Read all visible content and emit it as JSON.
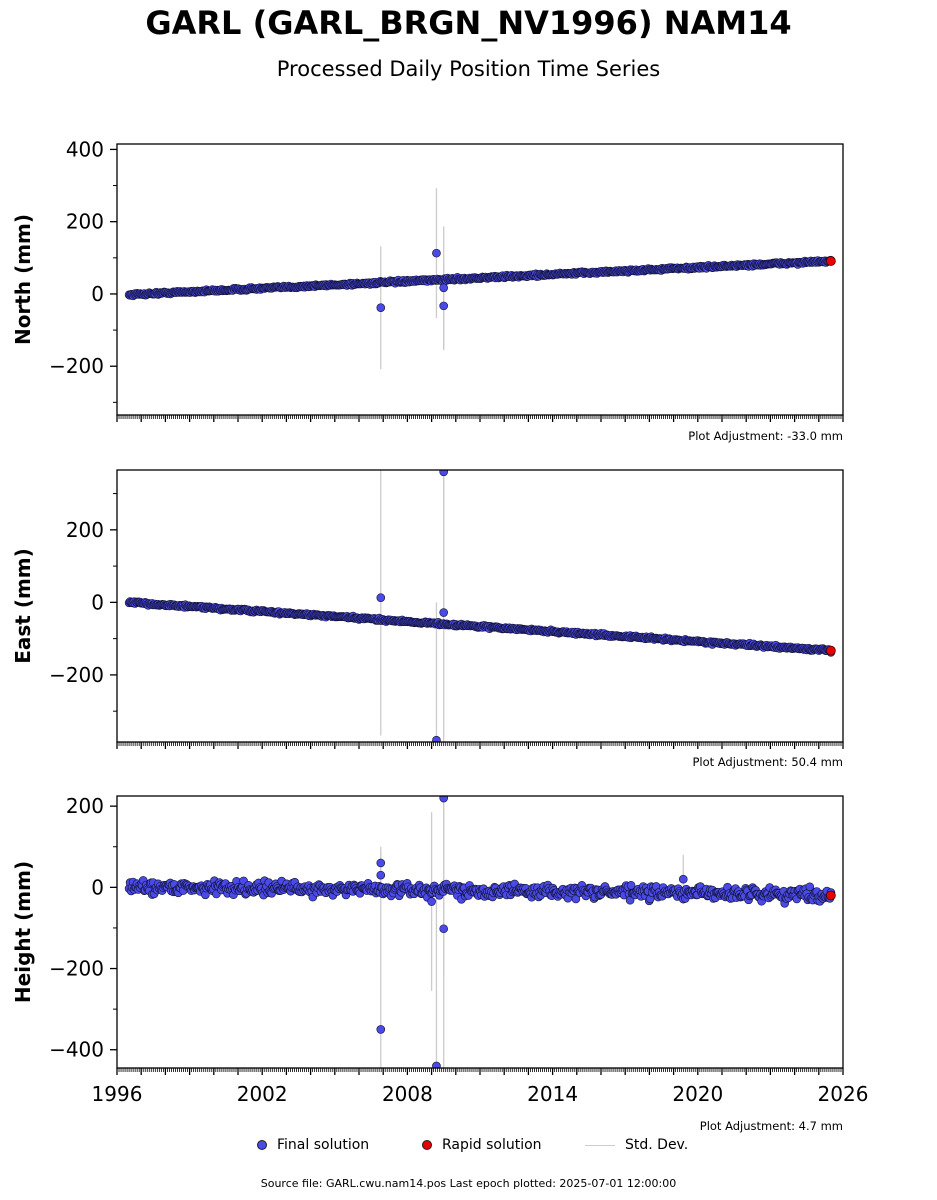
{
  "title": "GARL (GARL_BRGN_NV1996) NAM14",
  "subtitle": "Processed Daily Position Time Series",
  "legend": {
    "final": "Final solution",
    "rapid": "Rapid solution",
    "std": "Std. Dev."
  },
  "source": "Source file: GARL.cwu.nam14.pos  Last epoch plotted: 2025-07-01 12:00:00",
  "colors": {
    "final": "#4a4ae6",
    "rapid": "#e60000",
    "std": "#cccccc",
    "edge": "#111133"
  },
  "chart_data": [
    {
      "type": "scatter",
      "ylabel": "North (mm)",
      "adjustment_label": "Plot Adjustment: -33.0 mm",
      "xlim": [
        1996,
        2026
      ],
      "ylim": [
        -335,
        415
      ],
      "yticks": [
        -200,
        0,
        200,
        400
      ],
      "trend": {
        "x0": 1996.5,
        "y0": -2,
        "x1": 2025.5,
        "y1": 91
      },
      "noise": 2.5,
      "outliers": [
        {
          "x": 2006.9,
          "y": -38,
          "err": 170
        },
        {
          "x": 2009.2,
          "y": 113,
          "err": 180
        },
        {
          "x": 2009.5,
          "y": -33,
          "err": 122
        },
        {
          "x": 2009.5,
          "y": 17,
          "err": 170
        }
      ],
      "rapid": [
        {
          "x": 2025.5,
          "y": 91
        }
      ]
    },
    {
      "type": "scatter",
      "ylabel": "East (mm)",
      "adjustment_label": "Plot Adjustment: 50.4 mm",
      "xlim": [
        1996,
        2026
      ],
      "ylim": [
        -385,
        365
      ],
      "yticks": [
        -200,
        0,
        200
      ],
      "trend": {
        "x0": 1996.5,
        "y0": 0,
        "x1": 2025.5,
        "y1": -133
      },
      "noise": 2.5,
      "outliers": [
        {
          "x": 2006.9,
          "y": 13,
          "err": 380
        },
        {
          "x": 2009.2,
          "y": -380,
          "err": 380
        },
        {
          "x": 2009.5,
          "y": 360,
          "err": 380
        },
        {
          "x": 2009.5,
          "y": -28,
          "err": 380
        }
      ],
      "rapid": [
        {
          "x": 2025.5,
          "y": -133
        }
      ]
    },
    {
      "type": "scatter",
      "ylabel": "Height (mm)",
      "adjustment_label": "Plot Adjustment: 4.7 mm",
      "xlim": [
        1996,
        2026
      ],
      "ylim": [
        -445,
        225
      ],
      "yticks": [
        -400,
        -200,
        0,
        200
      ],
      "xticks": [
        1996,
        2002,
        2008,
        2014,
        2020,
        2026
      ],
      "trend": {
        "x0": 1996.5,
        "y0": 2,
        "x1": 2025.5,
        "y1": -18
      },
      "noise": 11,
      "outliers": [
        {
          "x": 2006.9,
          "y": 60,
          "err": 40
        },
        {
          "x": 2006.9,
          "y": 30,
          "err": 60
        },
        {
          "x": 2006.9,
          "y": -350,
          "err": 400
        },
        {
          "x": 2009.0,
          "y": -35,
          "err": 220
        },
        {
          "x": 2009.2,
          "y": -440,
          "err": 440
        },
        {
          "x": 2009.5,
          "y": 220,
          "err": 440
        },
        {
          "x": 2009.5,
          "y": -102,
          "err": 440
        },
        {
          "x": 2019.4,
          "y": 20,
          "err": 60
        }
      ],
      "rapid": [
        {
          "x": 2025.5,
          "y": -20
        }
      ]
    }
  ]
}
